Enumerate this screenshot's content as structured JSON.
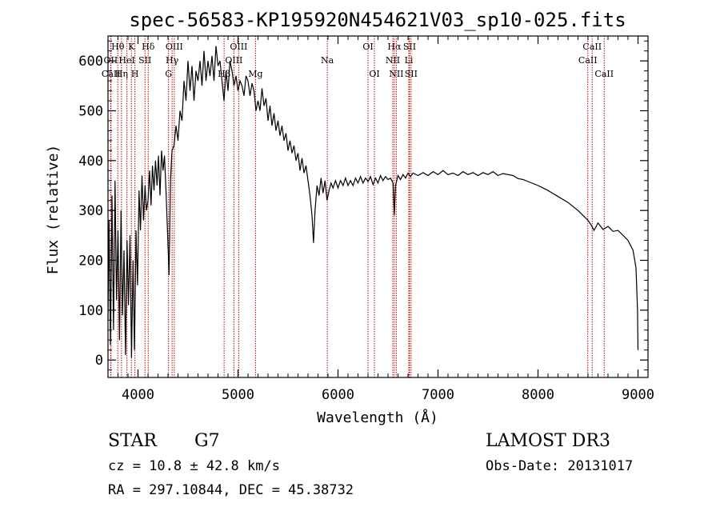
{
  "chart_data": {
    "type": "line",
    "title": "spec-56583-KP195920N454621V03_sp10-025.fits",
    "xlabel": "Wavelength (Å)",
    "ylabel": "Flux (relative)",
    "xlim": [
      3700,
      9100
    ],
    "ylim": [
      -35,
      650
    ],
    "x_ticks": [
      4000,
      5000,
      6000,
      7000,
      8000,
      9000
    ],
    "y_ticks": [
      0,
      100,
      200,
      300,
      400,
      500,
      600
    ],
    "grid": false,
    "line_color": "#000000",
    "marker_color": "#c00000",
    "spectrum": [
      [
        3700,
        80
      ],
      [
        3710,
        280
      ],
      [
        3725,
        30
      ],
      [
        3740,
        330
      ],
      [
        3755,
        60
      ],
      [
        3770,
        360
      ],
      [
        3785,
        120
      ],
      [
        3800,
        260
      ],
      [
        3815,
        40
      ],
      [
        3830,
        300
      ],
      [
        3845,
        90
      ],
      [
        3860,
        220
      ],
      [
        3875,
        10
      ],
      [
        3890,
        240
      ],
      [
        3905,
        110
      ],
      [
        3920,
        250
      ],
      [
        3935,
        5
      ],
      [
        3950,
        200
      ],
      [
        3965,
        20
      ],
      [
        3980,
        260
      ],
      [
        3995,
        150
      ],
      [
        4010,
        340
      ],
      [
        4025,
        260
      ],
      [
        4040,
        370
      ],
      [
        4055,
        280
      ],
      [
        4070,
        350
      ],
      [
        4085,
        300
      ],
      [
        4100,
        320
      ],
      [
        4115,
        380
      ],
      [
        4130,
        310
      ],
      [
        4145,
        390
      ],
      [
        4160,
        340
      ],
      [
        4175,
        400
      ],
      [
        4190,
        350
      ],
      [
        4205,
        410
      ],
      [
        4220,
        330
      ],
      [
        4235,
        420
      ],
      [
        4250,
        380
      ],
      [
        4265,
        410
      ],
      [
        4280,
        340
      ],
      [
        4300,
        230
      ],
      [
        4310,
        170
      ],
      [
        4325,
        360
      ],
      [
        4340,
        420
      ],
      [
        4360,
        430
      ],
      [
        4380,
        470
      ],
      [
        4400,
        440
      ],
      [
        4420,
        500
      ],
      [
        4440,
        480
      ],
      [
        4460,
        560
      ],
      [
        4480,
        520
      ],
      [
        4500,
        600
      ],
      [
        4520,
        540
      ],
      [
        4540,
        590
      ],
      [
        4560,
        520
      ],
      [
        4580,
        580
      ],
      [
        4600,
        560
      ],
      [
        4620,
        600
      ],
      [
        4640,
        550
      ],
      [
        4660,
        620
      ],
      [
        4680,
        560
      ],
      [
        4700,
        600
      ],
      [
        4720,
        570
      ],
      [
        4740,
        610
      ],
      [
        4760,
        560
      ],
      [
        4780,
        630
      ],
      [
        4800,
        590
      ],
      [
        4820,
        600
      ],
      [
        4840,
        560
      ],
      [
        4860,
        520
      ],
      [
        4880,
        580
      ],
      [
        4900,
        540
      ],
      [
        4920,
        600
      ],
      [
        4940,
        580
      ],
      [
        4960,
        550
      ],
      [
        4980,
        570
      ],
      [
        5000,
        540
      ],
      [
        5020,
        560
      ],
      [
        5040,
        550
      ],
      [
        5060,
        530
      ],
      [
        5080,
        570
      ],
      [
        5100,
        560
      ],
      [
        5120,
        530
      ],
      [
        5140,
        555
      ],
      [
        5160,
        540
      ],
      [
        5180,
        500
      ],
      [
        5200,
        520
      ],
      [
        5220,
        500
      ],
      [
        5240,
        545
      ],
      [
        5260,
        510
      ],
      [
        5280,
        525
      ],
      [
        5300,
        480
      ],
      [
        5320,
        510
      ],
      [
        5340,
        470
      ],
      [
        5360,
        495
      ],
      [
        5380,
        460
      ],
      [
        5400,
        480
      ],
      [
        5420,
        450
      ],
      [
        5440,
        470
      ],
      [
        5460,
        440
      ],
      [
        5480,
        455
      ],
      [
        5500,
        420
      ],
      [
        5520,
        440
      ],
      [
        5540,
        415
      ],
      [
        5560,
        430
      ],
      [
        5580,
        400
      ],
      [
        5600,
        415
      ],
      [
        5620,
        380
      ],
      [
        5640,
        405
      ],
      [
        5660,
        375
      ],
      [
        5680,
        390
      ],
      [
        5700,
        360
      ],
      [
        5720,
        330
      ],
      [
        5740,
        290
      ],
      [
        5755,
        235
      ],
      [
        5770,
        300
      ],
      [
        5790,
        350
      ],
      [
        5810,
        330
      ],
      [
        5830,
        365
      ],
      [
        5850,
        335
      ],
      [
        5870,
        360
      ],
      [
        5890,
        320
      ],
      [
        5910,
        340
      ],
      [
        5930,
        355
      ],
      [
        5950,
        345
      ],
      [
        5975,
        360
      ],
      [
        6000,
        345
      ],
      [
        6025,
        360
      ],
      [
        6050,
        350
      ],
      [
        6075,
        365
      ],
      [
        6100,
        350
      ],
      [
        6125,
        360
      ],
      [
        6150,
        350
      ],
      [
        6175,
        365
      ],
      [
        6200,
        355
      ],
      [
        6225,
        368
      ],
      [
        6250,
        355
      ],
      [
        6275,
        365
      ],
      [
        6300,
        358
      ],
      [
        6325,
        368
      ],
      [
        6350,
        352
      ],
      [
        6375,
        365
      ],
      [
        6400,
        355
      ],
      [
        6425,
        370
      ],
      [
        6450,
        360
      ],
      [
        6475,
        368
      ],
      [
        6500,
        362
      ],
      [
        6525,
        365
      ],
      [
        6550,
        355
      ],
      [
        6563,
        290
      ],
      [
        6575,
        350
      ],
      [
        6600,
        370
      ],
      [
        6625,
        362
      ],
      [
        6650,
        372
      ],
      [
        6675,
        365
      ],
      [
        6700,
        375
      ],
      [
        6725,
        368
      ],
      [
        6750,
        375
      ],
      [
        6800,
        370
      ],
      [
        6850,
        376
      ],
      [
        6900,
        370
      ],
      [
        6950,
        378
      ],
      [
        7000,
        372
      ],
      [
        7050,
        380
      ],
      [
        7100,
        372
      ],
      [
        7150,
        375
      ],
      [
        7200,
        370
      ],
      [
        7250,
        378
      ],
      [
        7300,
        372
      ],
      [
        7350,
        376
      ],
      [
        7400,
        370
      ],
      [
        7450,
        376
      ],
      [
        7500,
        372
      ],
      [
        7550,
        378
      ],
      [
        7600,
        370
      ],
      [
        7650,
        374
      ],
      [
        7700,
        372
      ],
      [
        7750,
        370
      ],
      [
        7800,
        364
      ],
      [
        7850,
        362
      ],
      [
        7900,
        358
      ],
      [
        7950,
        354
      ],
      [
        8000,
        350
      ],
      [
        8050,
        345
      ],
      [
        8100,
        340
      ],
      [
        8150,
        334
      ],
      [
        8200,
        328
      ],
      [
        8250,
        322
      ],
      [
        8300,
        316
      ],
      [
        8350,
        308
      ],
      [
        8400,
        300
      ],
      [
        8450,
        290
      ],
      [
        8500,
        280
      ],
      [
        8540,
        268
      ],
      [
        8560,
        260
      ],
      [
        8600,
        275
      ],
      [
        8650,
        262
      ],
      [
        8700,
        268
      ],
      [
        8750,
        258
      ],
      [
        8800,
        260
      ],
      [
        8850,
        250
      ],
      [
        8900,
        240
      ],
      [
        8950,
        220
      ],
      [
        8980,
        185
      ],
      [
        8995,
        100
      ],
      [
        9000,
        20
      ]
    ],
    "lines": [
      {
        "name": "Hθ",
        "wl": 3798,
        "row": 0
      },
      {
        "name": "OII",
        "wl": 3727,
        "row": 1
      },
      {
        "name": "CaII",
        "wl": 3730,
        "row": 2
      },
      {
        "name": "K",
        "wl": 3934,
        "row": 0
      },
      {
        "name": "HeI",
        "wl": 3889,
        "row": 1
      },
      {
        "name": "Hη",
        "wl": 3835,
        "row": 2
      },
      {
        "name": "SII",
        "wl": 4070,
        "row": 1
      },
      {
        "name": "Hδ",
        "wl": 4102,
        "row": 0
      },
      {
        "name": "H",
        "wl": 3969,
        "row": 2
      },
      {
        "name": "OIII",
        "wl": 4363,
        "row": 0
      },
      {
        "name": "Hγ",
        "wl": 4341,
        "row": 1
      },
      {
        "name": "G",
        "wl": 4305,
        "row": 2
      },
      {
        "name": "OIII",
        "wl": 5007,
        "row": 0
      },
      {
        "name": "OIII",
        "wl": 4959,
        "row": 1
      },
      {
        "name": "Hβ",
        "wl": 4861,
        "row": 2
      },
      {
        "name": "Mg",
        "wl": 5175,
        "row": 2
      },
      {
        "name": "Na",
        "wl": 5893,
        "row": 1
      },
      {
        "name": "OI",
        "wl": 6300,
        "row": 0
      },
      {
        "name": "OI",
        "wl": 6364,
        "row": 2
      },
      {
        "name": "Hα",
        "wl": 6563,
        "row": 0
      },
      {
        "name": "NII",
        "wl": 6548,
        "row": 1
      },
      {
        "name": "NII",
        "wl": 6583,
        "row": 2
      },
      {
        "name": "SII",
        "wl": 6716,
        "row": 0
      },
      {
        "name": "Li",
        "wl": 6708,
        "row": 1
      },
      {
        "name": "SII",
        "wl": 6731,
        "row": 2
      },
      {
        "name": "CaII",
        "wl": 8542,
        "row": 0
      },
      {
        "name": "CaII",
        "wl": 8498,
        "row": 1
      },
      {
        "name": "CaII",
        "wl": 8662,
        "row": 2
      }
    ]
  },
  "info": {
    "class": "STAR",
    "subclass": "G7",
    "survey": "LAMOST DR3",
    "cz": "cz = 10.8 ± 42.8 km/s",
    "obs_date": "Obs-Date: 20131017",
    "coords": "RA = 297.10844, DEC =  45.38732"
  }
}
